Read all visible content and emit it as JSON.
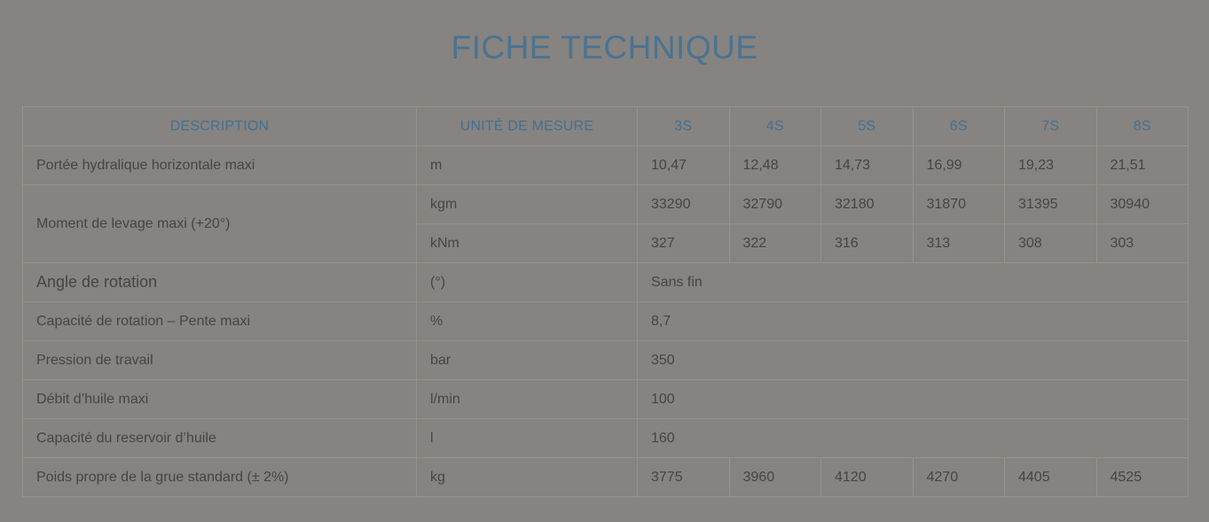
{
  "title": "FICHE TECHNIQUE",
  "colors": {
    "background": "#868381",
    "border": "#96938e",
    "accent_blue": "#4a7391",
    "text": "#474441"
  },
  "table": {
    "headers": [
      "DESCRIPTION",
      "UNITÉ DE MESURE",
      "3S",
      "4S",
      "5S",
      "6S",
      "7S",
      "8S"
    ],
    "rows": [
      {
        "description": "Portée hydralique horizontale maxi",
        "unit": "m",
        "values": [
          "10,47",
          "12,48",
          "14,73",
          "16,99",
          "19,23",
          "21,51"
        ],
        "span_values": false
      },
      {
        "description": "Moment de levage maxi (+20°)",
        "desc_rowspan": 2,
        "unit": "kgm",
        "values": [
          "33290",
          "32790",
          "32180",
          "31870",
          "31395",
          "30940"
        ],
        "span_values": false
      },
      {
        "description": null,
        "unit": "kNm",
        "values": [
          "327",
          "322",
          "316",
          "313",
          "308",
          "303"
        ],
        "span_values": false
      },
      {
        "description": "Angle de rotation",
        "large": true,
        "unit": "(°)",
        "values": [
          "Sans fin"
        ],
        "span_values": true
      },
      {
        "description": "Capacité de rotation – Pente maxi",
        "unit": "%",
        "values": [
          "8,7"
        ],
        "span_values": true
      },
      {
        "description": "Pression de travail",
        "unit": "bar",
        "values": [
          "350"
        ],
        "span_values": true
      },
      {
        "description": "Débit d’huile maxi",
        "unit": "l/min",
        "values": [
          "100"
        ],
        "span_values": true
      },
      {
        "description": "Capacité du reservoir d’huile",
        "unit": "l",
        "values": [
          "160"
        ],
        "span_values": true
      },
      {
        "description": "Poids propre de la grue standard (± 2%)",
        "unit": "kg",
        "values": [
          "3775",
          "3960",
          "4120",
          "4270",
          "4405",
          "4525"
        ],
        "span_values": false
      }
    ]
  }
}
